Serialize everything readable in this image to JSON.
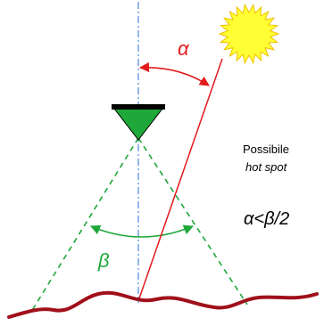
{
  "labels": {
    "alpha": "α",
    "beta": "β",
    "note_line1": "Possibile",
    "note_line2": "hot spot",
    "condition": "α<β/2"
  }
}
